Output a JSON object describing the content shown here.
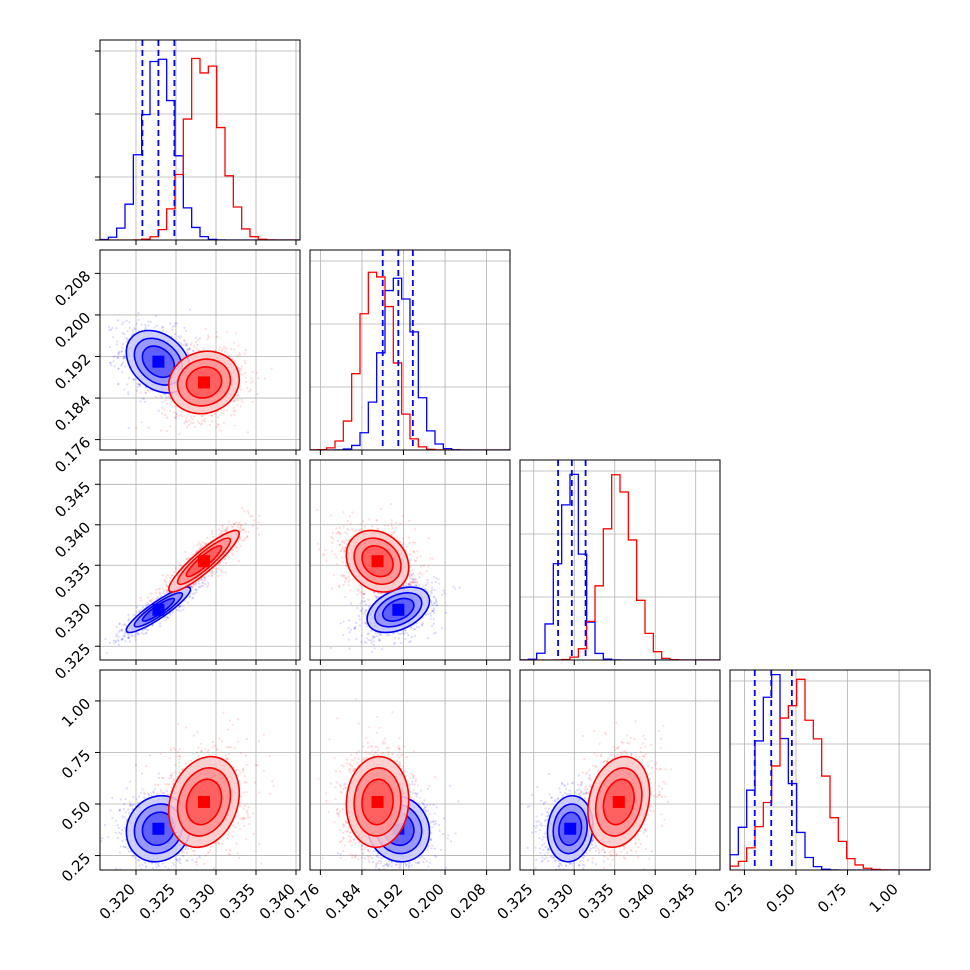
{
  "chart_data": {
    "type": "scatter",
    "layout": "corner-plot 4x4",
    "grid": true,
    "colors": {
      "red": "#ff0000",
      "blue": "#0000ff"
    },
    "parameters": [
      {
        "range": [
          0.3155,
          0.3405
        ],
        "ticks": [
          0.32,
          0.325,
          0.33,
          0.335,
          0.34
        ],
        "tick_labels": [
          "0.320",
          "0.325",
          "0.330",
          "0.335",
          "0.340"
        ]
      },
      {
        "range": [
          0.174,
          0.2125
        ],
        "ticks": [
          0.176,
          0.184,
          0.192,
          0.2,
          0.208
        ],
        "tick_labels": [
          "0.176",
          "0.184",
          "0.192",
          "0.200",
          "0.208"
        ]
      },
      {
        "range": [
          0.3233,
          0.348
        ],
        "ticks": [
          0.325,
          0.33,
          0.335,
          0.34,
          0.345
        ],
        "tick_labels": [
          "0.325",
          "0.330",
          "0.335",
          "0.340",
          "0.345"
        ]
      },
      {
        "range": [
          0.18,
          1.15
        ],
        "ticks": [
          0.25,
          0.5,
          0.75,
          1.0
        ],
        "tick_labels": [
          "0.25",
          "0.50",
          "0.75",
          "1.00"
        ]
      }
    ],
    "series": [
      {
        "color": "#0000ff",
        "mean": [
          0.3228,
          0.191,
          0.3295,
          0.38
        ],
        "sd": [
          0.002,
          0.003,
          0.0014,
          0.08
        ],
        "corr": {
          "0-1": -0.3,
          "0-2": 0.9,
          "1-2": 0.4,
          "0-3": 0.1,
          "1-3": -0.1,
          "2-3": 0.1
        }
      },
      {
        "color": "#ff0000",
        "mean": [
          0.3285,
          0.187,
          0.3355,
          0.51
        ],
        "sd": [
          0.0022,
          0.003,
          0.0019,
          0.11
        ],
        "corr": {
          "0-1": 0.1,
          "0-2": 0.9,
          "1-2": -0.2,
          "0-3": 0.2,
          "1-3": 0.05,
          "2-3": 0.2
        }
      }
    ],
    "quantile_lines": [
      [
        0.3208,
        0.3228,
        0.3248
      ],
      [
        0.188,
        0.191,
        0.1938
      ],
      [
        0.328,
        0.3297,
        0.3314
      ],
      [
        0.3,
        0.38,
        0.48
      ]
    ]
  }
}
